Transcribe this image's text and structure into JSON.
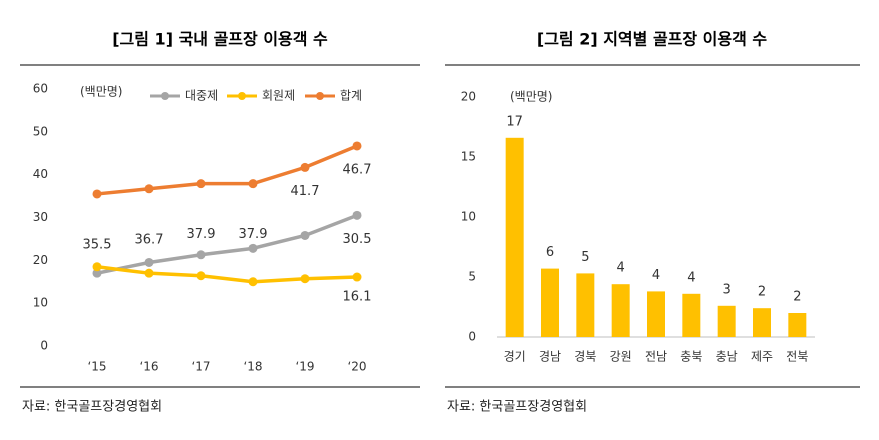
{
  "chart_data": [
    {
      "type": "line",
      "title": "[그림 1] 국내 골프장 이용객 수",
      "y_label": "(백만명)",
      "categories": [
        "‘15",
        "‘16",
        "‘17",
        "‘18",
        "‘19",
        "‘20"
      ],
      "series": [
        {
          "name": "대중제",
          "color": "#a5a5a5",
          "values": [
            17,
            19.5,
            21.3,
            22.8,
            25.8,
            30.5
          ],
          "value_labels": [
            null,
            null,
            null,
            null,
            null,
            "30.5"
          ]
        },
        {
          "name": "회원제",
          "color": "#ffc000",
          "values": [
            18.5,
            17,
            16.4,
            15,
            15.7,
            16.1
          ],
          "value_labels": [
            null,
            null,
            null,
            null,
            null,
            "16.1"
          ]
        },
        {
          "name": "합계",
          "color": "#ed7d31",
          "values": [
            35.5,
            36.7,
            37.9,
            37.9,
            41.7,
            46.7
          ],
          "value_labels": [
            "35.5",
            "36.7",
            "37.9",
            "37.9",
            "41.7",
            "46.7"
          ]
        }
      ],
      "ylim": [
        0,
        60
      ],
      "yticks": [
        0,
        10,
        20,
        30,
        40,
        50,
        60
      ],
      "grid": false,
      "source": "자료: 한국골프장경영협회"
    },
    {
      "type": "bar",
      "title": "[그림 2] 지역별 골프장 이용객 수",
      "y_label": "(백만명)",
      "categories": [
        "경기",
        "경남",
        "경북",
        "강원",
        "전남",
        "충북",
        "충남",
        "제주",
        "전북"
      ],
      "values": [
        16.6,
        5.7,
        5.3,
        4.4,
        3.8,
        3.6,
        2.6,
        2.4,
        2.0
      ],
      "value_labels": [
        "17",
        "6",
        "5",
        "4",
        "4",
        "4",
        "3",
        "2",
        "2"
      ],
      "color": "#ffc000",
      "ylim": [
        0,
        20
      ],
      "yticks": [
        0,
        5,
        10,
        15,
        20
      ],
      "grid": false,
      "source": "자료: 한국골프장경영협회"
    }
  ]
}
